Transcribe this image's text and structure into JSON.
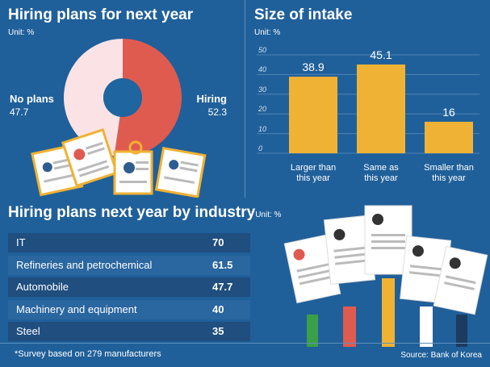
{
  "colors": {
    "background": "#20609a",
    "hiring": "#e05b4f",
    "no_plans": "#fbe3e5",
    "bar": "#f0b234",
    "donut_center": "#1f65a0",
    "table_row_dark": "#1f4e7f",
    "table_row_light": "#2a669f"
  },
  "left_panel": {
    "title": "Hiring plans for next year",
    "unit": "Unit: %"
  },
  "middle_panel": {
    "title": "Size of intake",
    "unit": "Unit: %"
  },
  "bottom_panel": {
    "title": "Hiring plans next year by industry",
    "unit": "Unit: %"
  },
  "footnote": "*Survey based on 279 manufacturers",
  "source": "Source: Bank of Korea",
  "icons": [
    "resume-documents-illustration",
    "raised-hands-with-resumes-illustration"
  ],
  "chart_data": [
    {
      "type": "pie",
      "title": "Hiring plans for next year",
      "slices": [
        {
          "name": "Hiring",
          "value": 52.3,
          "value_label": "52.3",
          "color": "#e05b4f"
        },
        {
          "name": "No plans",
          "value": 47.7,
          "value_label": "47.7",
          "color": "#fbe3e5"
        }
      ]
    },
    {
      "type": "bar",
      "title": "Size of intake",
      "categories": [
        "Larger than this year",
        "Same as this year",
        "Smaller than this year"
      ],
      "category_lines": [
        [
          "Larger than",
          "this year"
        ],
        [
          "Same as",
          "this year"
        ],
        [
          "Smaller than",
          "this year"
        ]
      ],
      "values": [
        38.9,
        45.1,
        16
      ],
      "value_labels": [
        "38.9",
        "45.1",
        "16"
      ],
      "ylim": [
        0,
        50
      ],
      "yticks": [
        "0",
        "10",
        "20",
        "30",
        "40",
        "50"
      ],
      "grid": true
    },
    {
      "type": "table",
      "title": "Hiring plans next year by industry",
      "rows": [
        {
          "label": "IT",
          "value": "70"
        },
        {
          "label": "Refineries and petrochemical",
          "value": "61.5"
        },
        {
          "label": "Automobile",
          "value": "47.7"
        },
        {
          "label": "Machinery and equipment",
          "value": "40"
        },
        {
          "label": "Steel",
          "value": "35"
        }
      ]
    }
  ]
}
